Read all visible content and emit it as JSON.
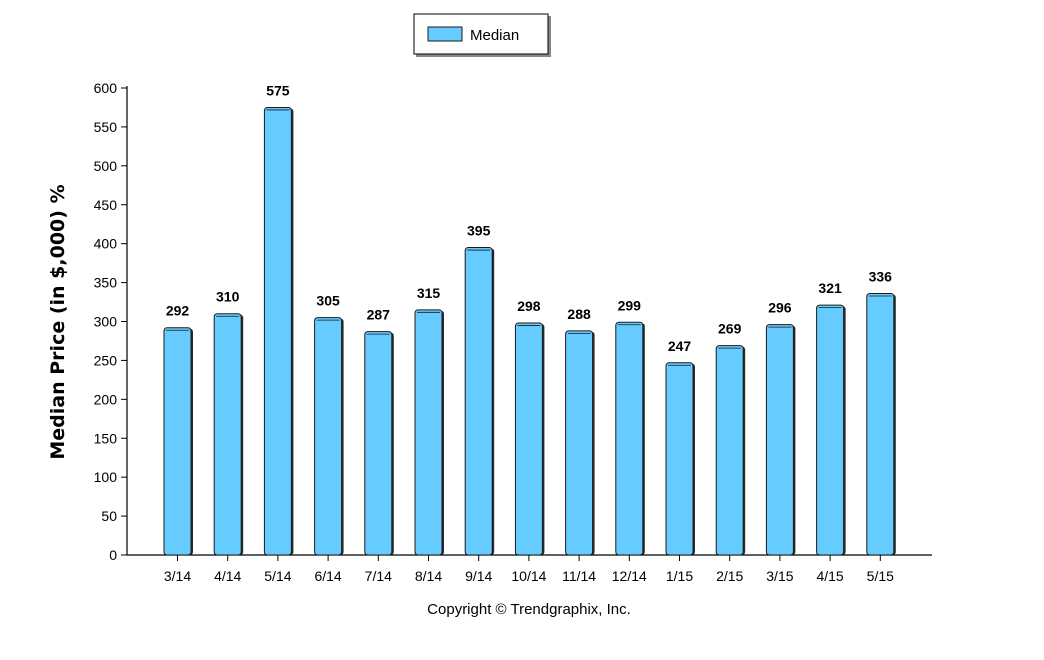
{
  "chart_data": {
    "type": "bar",
    "categories": [
      "3/14",
      "4/14",
      "5/14",
      "6/14",
      "7/14",
      "8/14",
      "9/14",
      "10/14",
      "11/14",
      "12/14",
      "1/15",
      "2/15",
      "3/15",
      "4/15",
      "5/15"
    ],
    "series": [
      {
        "name": "Median",
        "values": [
          292,
          310,
          575,
          305,
          287,
          315,
          395,
          298,
          288,
          299,
          247,
          269,
          296,
          321,
          336
        ]
      }
    ],
    "title": "",
    "xlabel": "",
    "ylabel": "Median Price (in $,000) %",
    "ylim": [
      0,
      600
    ],
    "yticks": [
      0,
      50,
      100,
      150,
      200,
      250,
      300,
      350,
      400,
      450,
      500,
      550,
      600
    ],
    "grid": false,
    "legend_position": "top-center",
    "data_labels": true,
    "bar_color": "#66ccff",
    "bar_stroke": "#1a1a1a"
  },
  "footer": {
    "copyright": "Copyright © Trendgraphix, Inc."
  }
}
